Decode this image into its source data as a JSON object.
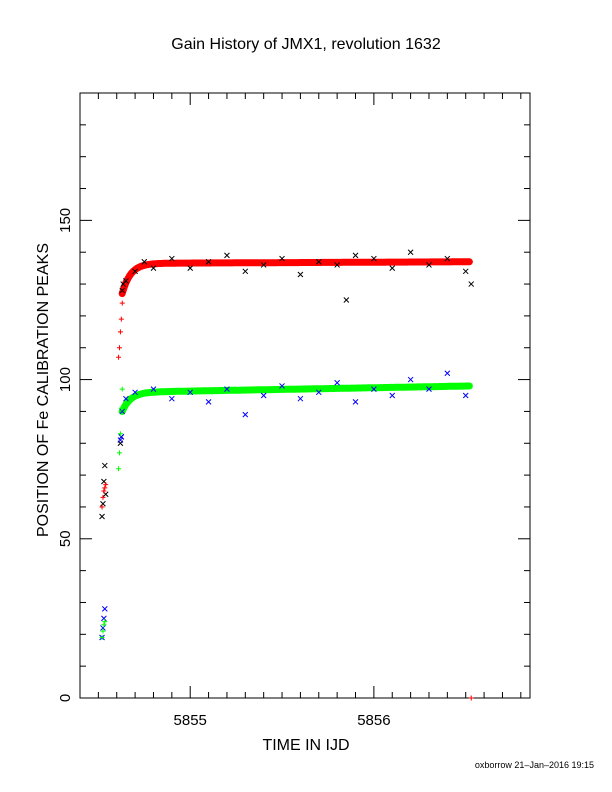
{
  "chart_data": {
    "type": "scatter",
    "title": "Gain History of JMX1, revolution 1632",
    "xlabel": "TIME IN IJD",
    "ylabel": "POSITION OF Fe CALIBRATION PEAKS",
    "xlim": [
      5854.4,
      5856.85
    ],
    "ylim": [
      0,
      190
    ],
    "x_ticks": [
      5855,
      5856
    ],
    "y_ticks": [
      0,
      50,
      100,
      150
    ],
    "grid": false,
    "series": [
      {
        "color": "#000000",
        "marker": "x",
        "trend": {
          "start_x": 5854.63,
          "start_y": 127,
          "plateau": 136.5,
          "drift": 0.5,
          "tau": 0.045
        },
        "points": [
          [
            5854.52,
            57
          ],
          [
            5854.525,
            61
          ],
          [
            5854.53,
            68
          ],
          [
            5854.535,
            73
          ],
          [
            5854.54,
            64
          ],
          [
            5854.62,
            80
          ],
          [
            5854.625,
            82
          ],
          [
            5854.63,
            128
          ],
          [
            5854.635,
            130
          ],
          [
            5854.65,
            131
          ],
          [
            5854.7,
            134
          ],
          [
            5854.75,
            137
          ],
          [
            5854.8,
            135
          ],
          [
            5854.9,
            138
          ],
          [
            5855.0,
            135
          ],
          [
            5855.1,
            137
          ],
          [
            5855.2,
            139
          ],
          [
            5855.3,
            134
          ],
          [
            5855.4,
            136
          ],
          [
            5855.5,
            138
          ],
          [
            5855.6,
            133
          ],
          [
            5855.7,
            137
          ],
          [
            5855.8,
            136
          ],
          [
            5855.85,
            125
          ],
          [
            5855.9,
            139
          ],
          [
            5856.0,
            138
          ],
          [
            5856.1,
            135
          ],
          [
            5856.2,
            140
          ],
          [
            5856.3,
            136
          ],
          [
            5856.4,
            138
          ],
          [
            5856.5,
            134
          ],
          [
            5856.53,
            130
          ]
        ]
      },
      {
        "color": "#ff0000",
        "marker": "+",
        "trend": {
          "start_x": 5854.63,
          "start_y": 127,
          "plateau": 136.5,
          "drift": 0.5,
          "tau": 0.045
        },
        "points": [
          [
            5854.52,
            60
          ],
          [
            5854.525,
            63
          ],
          [
            5854.53,
            65
          ],
          [
            5854.535,
            66
          ],
          [
            5854.54,
            67
          ],
          [
            5854.61,
            107
          ],
          [
            5854.615,
            110
          ],
          [
            5854.62,
            115
          ],
          [
            5854.625,
            119
          ],
          [
            5854.63,
            124
          ],
          [
            5856.53,
            0
          ]
        ]
      },
      {
        "color": "#0000ff",
        "marker": "x",
        "trend": {
          "start_x": 5854.63,
          "start_y": 90,
          "plateau": 96,
          "drift": 2,
          "tau": 0.045
        },
        "points": [
          [
            5854.52,
            19
          ],
          [
            5854.525,
            22
          ],
          [
            5854.53,
            25
          ],
          [
            5854.535,
            28
          ],
          [
            5854.62,
            81
          ],
          [
            5854.625,
            82
          ],
          [
            5854.63,
            90
          ],
          [
            5854.65,
            94
          ],
          [
            5854.7,
            96
          ],
          [
            5854.8,
            97
          ],
          [
            5854.9,
            94
          ],
          [
            5855.0,
            96
          ],
          [
            5855.1,
            93
          ],
          [
            5855.2,
            97
          ],
          [
            5855.3,
            89
          ],
          [
            5855.4,
            95
          ],
          [
            5855.5,
            98
          ],
          [
            5855.6,
            94
          ],
          [
            5855.7,
            96
          ],
          [
            5855.8,
            99
          ],
          [
            5855.9,
            93
          ],
          [
            5856.0,
            97
          ],
          [
            5856.1,
            95
          ],
          [
            5856.2,
            100
          ],
          [
            5856.3,
            97
          ],
          [
            5856.4,
            102
          ],
          [
            5856.5,
            95
          ]
        ]
      },
      {
        "color": "#00ff00",
        "marker": "+",
        "trend": {
          "start_x": 5854.63,
          "start_y": 90,
          "plateau": 96,
          "drift": 2,
          "tau": 0.045
        },
        "points": [
          [
            5854.52,
            19
          ],
          [
            5854.525,
            21
          ],
          [
            5854.53,
            23
          ],
          [
            5854.535,
            24
          ],
          [
            5854.61,
            72
          ],
          [
            5854.615,
            77
          ],
          [
            5854.62,
            83
          ],
          [
            5854.625,
            91
          ],
          [
            5854.63,
            97
          ]
        ]
      }
    ]
  },
  "footer": "oxborrow 21–Jan–2016 19:15"
}
